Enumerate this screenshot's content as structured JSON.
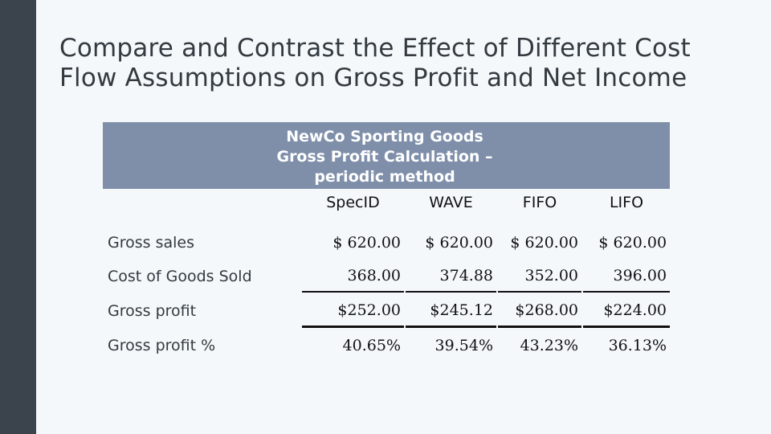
{
  "slide": {
    "title": "Compare and Contrast the Effect of Different Cost Flow Assumptions on Gross Profit and Net Income"
  },
  "table": {
    "header_lines": [
      "NewCo Sporting Goods",
      "Gross Profit Calculation –",
      "periodic method"
    ],
    "columns": [
      "SpecID",
      "WAVE",
      "FIFO",
      "LIFO"
    ],
    "rows": [
      {
        "label": "Gross sales",
        "values": [
          "$ 620.00",
          "$ 620.00",
          "$ 620.00",
          "$ 620.00"
        ]
      },
      {
        "label": "Cost of Goods Sold",
        "values": [
          "368.00",
          "374.88",
          "352.00",
          "396.00"
        ]
      },
      {
        "label": "Gross profit",
        "values": [
          "$252.00",
          "$245.12",
          "$268.00",
          "$224.00"
        ]
      },
      {
        "label": "Gross profit %",
        "values": [
          "40.65%",
          "39.54%",
          "43.23%",
          "36.13%"
        ]
      }
    ]
  }
}
